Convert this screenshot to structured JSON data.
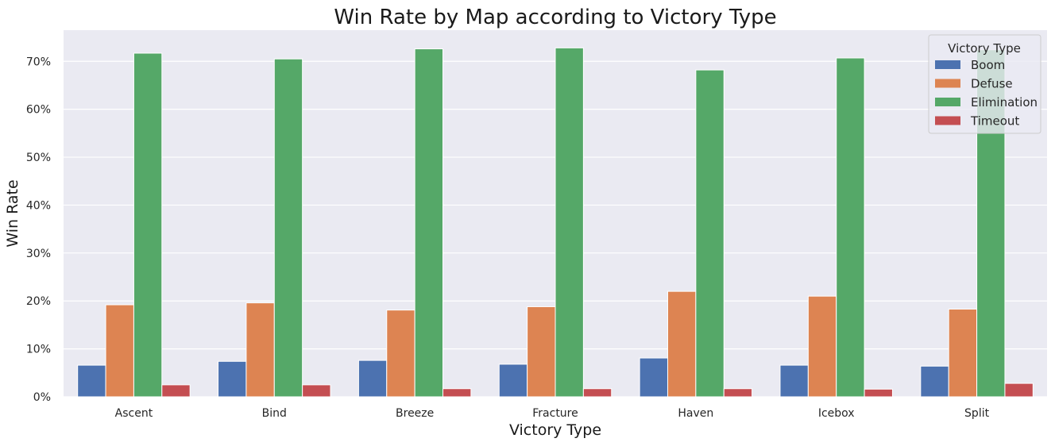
{
  "chart_data": {
    "type": "bar",
    "title": "Win Rate by Map according to Victory Type",
    "xlabel": "Victory Type",
    "ylabel": "Win Rate",
    "ylim": [
      0,
      76.5
    ],
    "yticks": [
      0,
      10,
      20,
      30,
      40,
      50,
      60,
      70
    ],
    "ytick_suffix": "%",
    "grid": true,
    "legend": {
      "title": "Victory Type",
      "position": "top-right"
    },
    "categories": [
      "Ascent",
      "Bind",
      "Breeze",
      "Fracture",
      "Haven",
      "Icebox",
      "Split"
    ],
    "series": [
      {
        "name": "Boom",
        "color": "#4c72b0",
        "values": [
          6.6,
          7.4,
          7.6,
          6.8,
          8.1,
          6.6,
          6.4
        ]
      },
      {
        "name": "Defuse",
        "color": "#dd8452",
        "values": [
          19.2,
          19.6,
          18.1,
          18.8,
          22.0,
          21.0,
          18.3
        ]
      },
      {
        "name": "Elimination",
        "color": "#55a868",
        "values": [
          71.7,
          70.5,
          72.6,
          72.8,
          68.2,
          70.7,
          72.4
        ]
      },
      {
        "name": "Timeout",
        "color": "#c44e52",
        "values": [
          2.5,
          2.5,
          1.7,
          1.7,
          1.7,
          1.6,
          2.8
        ]
      }
    ]
  }
}
